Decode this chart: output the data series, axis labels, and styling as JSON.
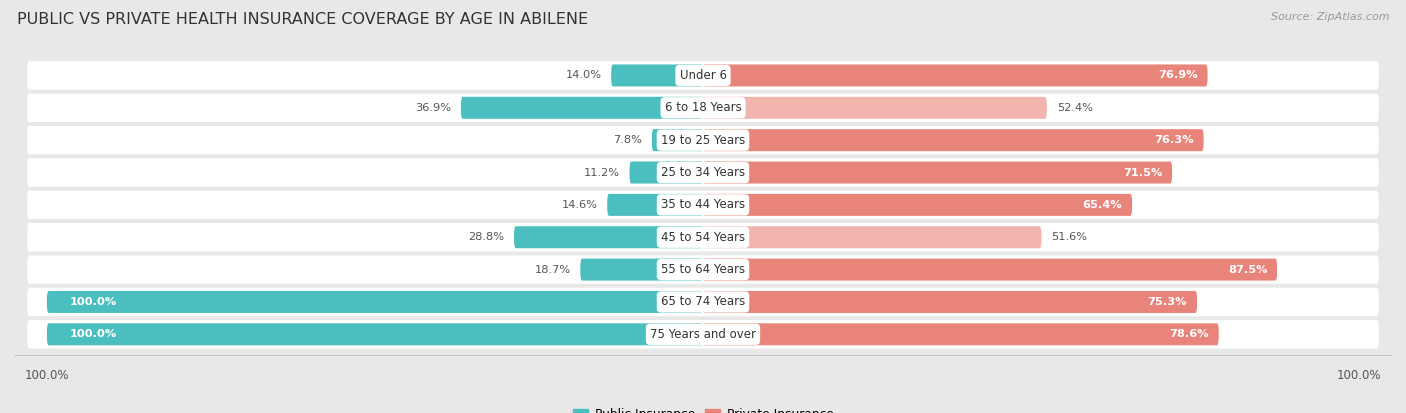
{
  "title": "PUBLIC VS PRIVATE HEALTH INSURANCE COVERAGE BY AGE IN ABILENE",
  "source": "Source: ZipAtlas.com",
  "categories": [
    "Under 6",
    "6 to 18 Years",
    "19 to 25 Years",
    "25 to 34 Years",
    "35 to 44 Years",
    "45 to 54 Years",
    "55 to 64 Years",
    "65 to 74 Years",
    "75 Years and over"
  ],
  "public_values": [
    14.0,
    36.9,
    7.8,
    11.2,
    14.6,
    28.8,
    18.7,
    100.0,
    100.0
  ],
  "private_values": [
    76.9,
    52.4,
    76.3,
    71.5,
    65.4,
    51.6,
    87.5,
    75.3,
    78.6
  ],
  "public_color": "#4BBFBF",
  "private_color": "#E8847A",
  "private_color_light": "#F2B5AE",
  "bg_color": "#e8e8e8",
  "bar_bg_color": "#ffffff",
  "title_fontsize": 11.5,
  "source_fontsize": 8.0,
  "value_fontsize": 8.2,
  "cat_fontsize": 8.5,
  "axis_max": 100.0,
  "legend_label_public": "Public Insurance",
  "legend_label_private": "Private Insurance"
}
